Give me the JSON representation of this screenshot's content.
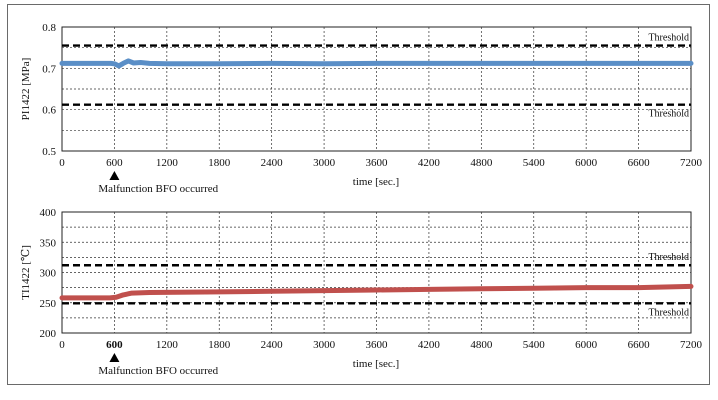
{
  "chart_data": [
    {
      "type": "line",
      "ylabel": "PI1422 [MPa]",
      "xlabel": "time [sec.]",
      "xlim": [
        0,
        7200
      ],
      "ylim": [
        0.5,
        0.8
      ],
      "x_ticks": [
        "0",
        "600",
        "1200",
        "1800",
        "2400",
        "3000",
        "3600",
        "4200",
        "4800",
        "5400",
        "6000",
        "6600",
        "7200"
      ],
      "y_ticks": [
        "0.5",
        "0.6",
        "0.7",
        "0.8"
      ],
      "grid": true,
      "series": [
        {
          "color": "#5b8fc7",
          "points": [
            [
              0,
              0.712
            ],
            [
              560,
              0.712
            ],
            [
              600,
              0.711
            ],
            [
              650,
              0.706
            ],
            [
              700,
              0.712
            ],
            [
              760,
              0.718
            ],
            [
              820,
              0.713
            ],
            [
              900,
              0.714
            ],
            [
              1000,
              0.712
            ],
            [
              1200,
              0.711
            ],
            [
              1800,
              0.711
            ],
            [
              2400,
              0.712
            ],
            [
              3000,
              0.711
            ],
            [
              3600,
              0.712
            ],
            [
              4200,
              0.712
            ],
            [
              4800,
              0.712
            ],
            [
              5400,
              0.712
            ],
            [
              6000,
              0.712
            ],
            [
              6600,
              0.712
            ],
            [
              7200,
              0.712
            ]
          ]
        }
      ],
      "thresholds": [
        {
          "label": "Threshold",
          "value": 0.755
        },
        {
          "label": "Threshold",
          "value": 0.612
        }
      ],
      "annotation": {
        "x": 600,
        "label": "Malfunction BFO occurred"
      }
    },
    {
      "type": "line",
      "ylabel": "TI1422 [℃]",
      "xlabel": "time [sec.]",
      "xlim": [
        0,
        7200
      ],
      "ylim": [
        200,
        400
      ],
      "x_ticks": [
        "0",
        "600",
        "1200",
        "1800",
        "2400",
        "3000",
        "3600",
        "4200",
        "4800",
        "5400",
        "6000",
        "6600",
        "7200"
      ],
      "bold_x_tick": "600",
      "y_ticks": [
        "200",
        "250",
        "300",
        "350",
        "400"
      ],
      "grid": true,
      "series": [
        {
          "color": "#c0504d",
          "points": [
            [
              0,
              258
            ],
            [
              550,
              258
            ],
            [
              620,
              259
            ],
            [
              700,
              263
            ],
            [
              800,
              266
            ],
            [
              1000,
              267
            ],
            [
              1800,
              268
            ],
            [
              2400,
              269
            ],
            [
              3000,
              270
            ],
            [
              3600,
              271
            ],
            [
              4200,
              272
            ],
            [
              4800,
              273
            ],
            [
              5400,
              274
            ],
            [
              6000,
              275
            ],
            [
              6600,
              275
            ],
            [
              7200,
              277
            ]
          ]
        }
      ],
      "thresholds": [
        {
          "label": "Threshold",
          "value": 312
        },
        {
          "label": "Threshold",
          "value": 249
        }
      ],
      "annotation": {
        "x": 600,
        "label": "Malfunction BFO occurred"
      }
    }
  ]
}
